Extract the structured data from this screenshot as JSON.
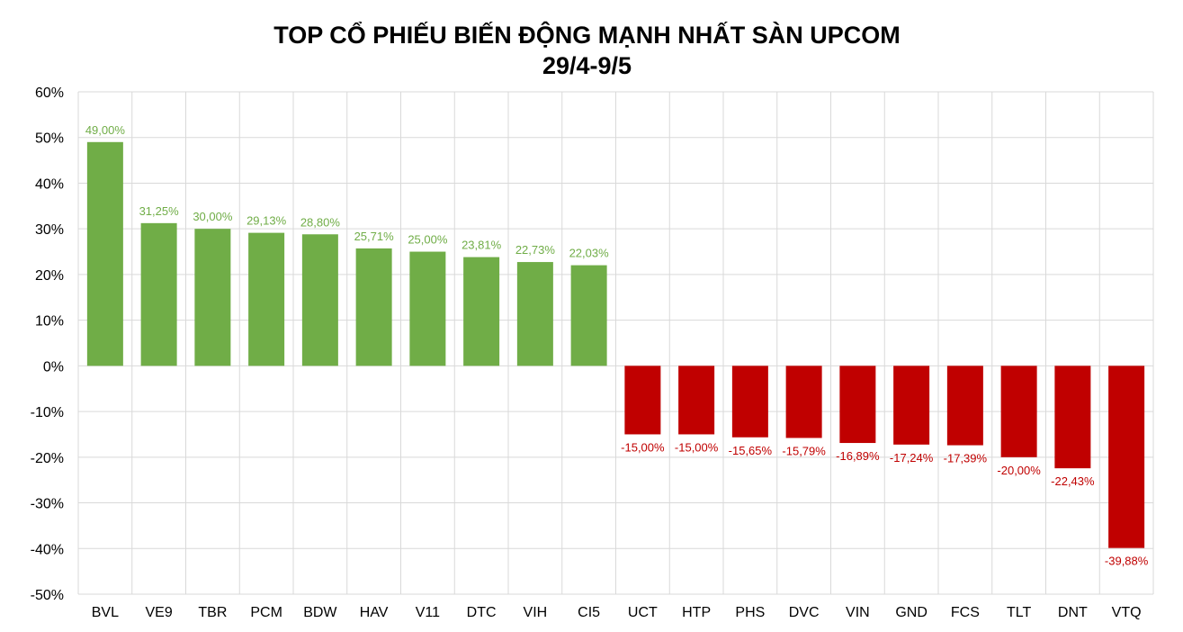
{
  "chart_data": {
    "type": "bar",
    "title": "TOP CỔ PHIẾU BIẾN ĐỘNG MẠNH NHẤT SÀN UPCOM",
    "subtitle": "29/4-9/5",
    "xlabel": "",
    "ylabel": "",
    "categories": [
      "BVL",
      "VE9",
      "TBR",
      "PCM",
      "BDW",
      "HAV",
      "V11",
      "DTC",
      "VIH",
      "CI5",
      "UCT",
      "HTP",
      "PHS",
      "DVC",
      "VIN",
      "GND",
      "FCS",
      "TLT",
      "DNT",
      "VTQ"
    ],
    "values": [
      49.0,
      31.25,
      30.0,
      29.13,
      28.8,
      25.71,
      25.0,
      23.81,
      22.73,
      22.03,
      -15.0,
      -15.0,
      -15.65,
      -15.79,
      -16.89,
      -17.24,
      -17.39,
      -20.0,
      -22.43,
      -39.88
    ],
    "data_labels": [
      "49,00%",
      "31,25%",
      "30,00%",
      "29,13%",
      "28,80%",
      "25,71%",
      "25,00%",
      "23,81%",
      "22,73%",
      "22,03%",
      "-15,00%",
      "-15,00%",
      "-15,65%",
      "-15,79%",
      "-16,89%",
      "-17,24%",
      "-17,39%",
      "-20,00%",
      "-22,43%",
      "-39,88%"
    ],
    "ylim": [
      -50,
      60
    ],
    "yticks": [
      60,
      50,
      40,
      30,
      20,
      10,
      0,
      -10,
      -20,
      -30,
      -40,
      -50
    ],
    "ytick_labels": [
      "60%",
      "50%",
      "40%",
      "30%",
      "20%",
      "10%",
      "0%",
      "-10%",
      "-20%",
      "-30%",
      "-40%",
      "-50%"
    ],
    "grid": true,
    "colors": {
      "positive": "#70AD47",
      "negative": "#C00000",
      "positive_label": "#70AD47",
      "negative_label": "#C00000",
      "grid": "#D9D9D9"
    }
  }
}
